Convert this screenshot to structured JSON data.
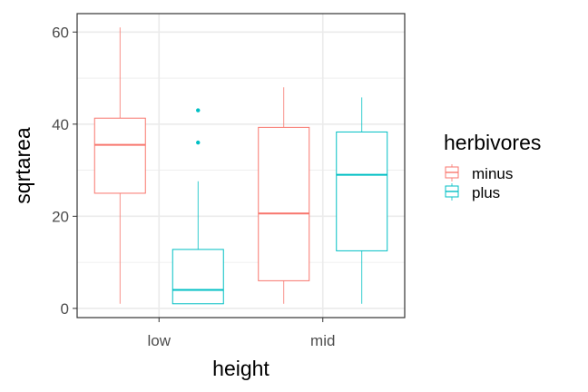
{
  "chart_data": {
    "type": "boxplot",
    "xlabel": "height",
    "ylabel": "sqrtarea",
    "categories": [
      "low",
      "mid"
    ],
    "ylim": [
      -2,
      64
    ],
    "yticks": [
      0,
      20,
      40,
      60
    ],
    "yticks_minor": [
      10,
      30,
      50
    ],
    "grid": true,
    "legend": {
      "title": "herbivores",
      "position": "right"
    },
    "series": [
      {
        "name": "minus",
        "color": "#F8766D",
        "boxes": [
          {
            "category": "low",
            "min": 1,
            "q1": 25,
            "median": 35.5,
            "q3": 41.3,
            "max": 61,
            "outliers": []
          },
          {
            "category": "mid",
            "min": 1,
            "q1": 6,
            "median": 20.6,
            "q3": 39.3,
            "max": 48,
            "outliers": []
          }
        ]
      },
      {
        "name": "plus",
        "color": "#00BFC4",
        "boxes": [
          {
            "category": "low",
            "min": 1,
            "q1": 1,
            "median": 4,
            "q3": 12.8,
            "max": 27.6,
            "outliers": [
              36,
              43
            ]
          },
          {
            "category": "mid",
            "min": 1,
            "q1": 12.5,
            "median": 29,
            "q3": 38.3,
            "max": 45.8,
            "outliers": []
          }
        ]
      }
    ]
  }
}
